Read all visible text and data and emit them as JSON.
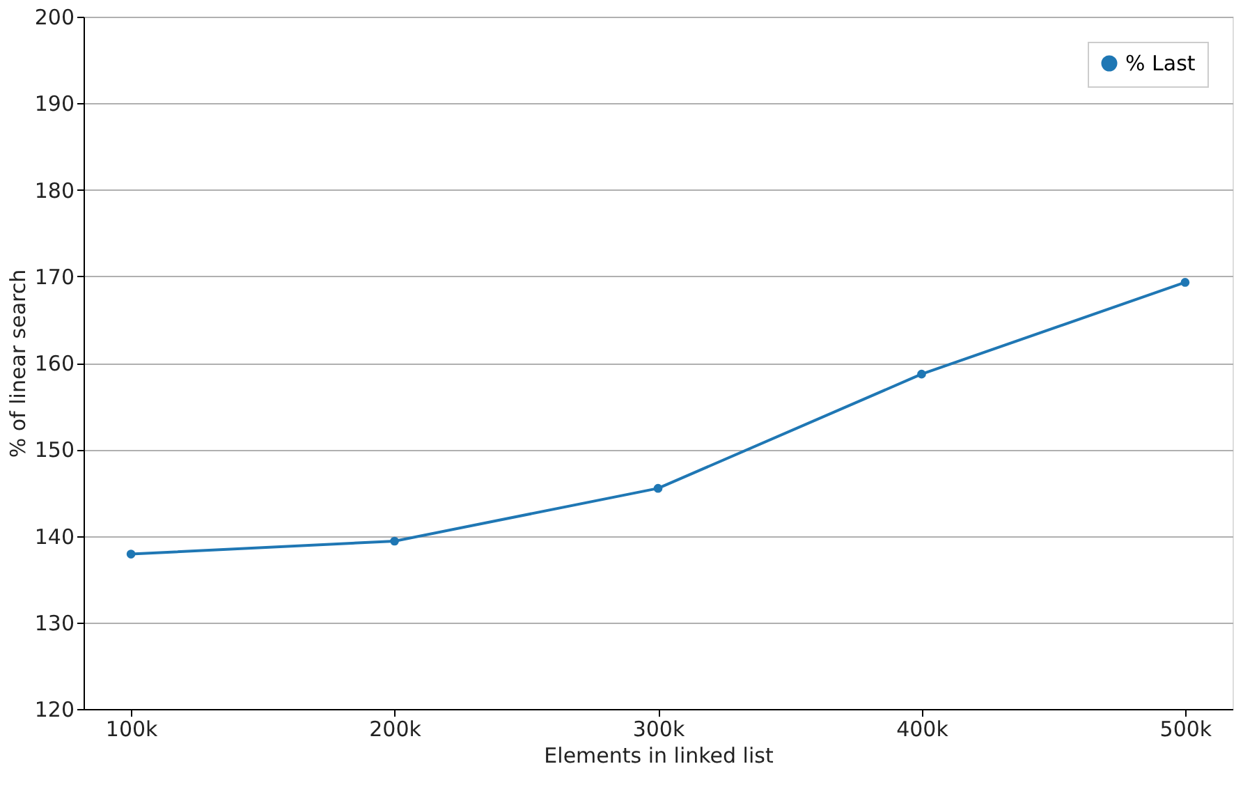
{
  "chart_data": {
    "type": "line",
    "xlabel": "Elements in linked list",
    "ylabel": "% of linear search",
    "categories": [
      "100k",
      "200k",
      "300k",
      "400k",
      "500k"
    ],
    "series": [
      {
        "name": "% Last",
        "color": "#1f77b4",
        "values": [
          137.9,
          139.4,
          145.5,
          158.7,
          169.3
        ]
      }
    ],
    "ylim": [
      120,
      200
    ],
    "yticks": [
      120,
      130,
      140,
      150,
      160,
      170,
      180,
      190,
      200
    ],
    "grid": "y",
    "legend": "top right",
    "marker": "circle",
    "line_style": "solid"
  }
}
